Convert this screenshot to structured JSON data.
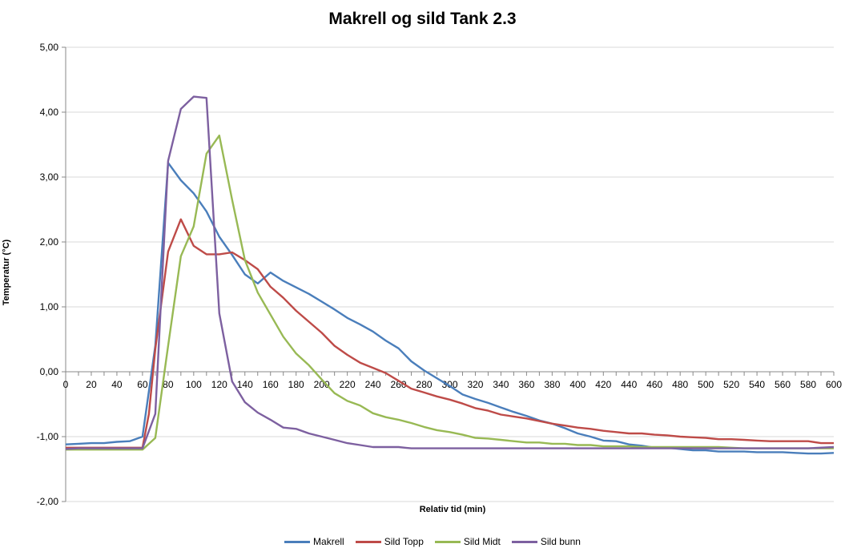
{
  "chart_data": {
    "type": "line",
    "title": "Makrell og sild Tank 2.3",
    "xlabel": "Relativ tid (min)",
    "ylabel": "Temperatur (°C)",
    "xlim": [
      0,
      600
    ],
    "ylim": [
      -2,
      5
    ],
    "x_ticks": [
      "0",
      "20",
      "40",
      "60",
      "80",
      "100",
      "120",
      "140",
      "160",
      "180",
      "200",
      "220",
      "240",
      "260",
      "280",
      "300",
      "320",
      "340",
      "360",
      "380",
      "400",
      "420",
      "440",
      "460",
      "480",
      "500",
      "520",
      "540",
      "560",
      "580",
      "600"
    ],
    "y_ticks": [
      "5,00",
      "4,00",
      "3,00",
      "2,00",
      "1,00",
      "0,00",
      "-1,00",
      "-2,00"
    ],
    "grid": "horizontal",
    "legend_position": "bottom",
    "series": [
      {
        "name": "Makrell",
        "color": "#4a7ebb",
        "points": [
          [
            0,
            -1.12
          ],
          [
            10,
            -1.11
          ],
          [
            20,
            -1.1
          ],
          [
            30,
            -1.1
          ],
          [
            40,
            -1.08
          ],
          [
            50,
            -1.07
          ],
          [
            60,
            -1.0
          ],
          [
            70,
            0.4
          ],
          [
            80,
            3.22
          ],
          [
            90,
            2.95
          ],
          [
            100,
            2.75
          ],
          [
            110,
            2.47
          ],
          [
            120,
            2.08
          ],
          [
            130,
            1.8
          ],
          [
            140,
            1.5
          ],
          [
            150,
            1.36
          ],
          [
            160,
            1.53
          ],
          [
            170,
            1.4
          ],
          [
            180,
            1.3
          ],
          [
            190,
            1.2
          ],
          [
            200,
            1.08
          ],
          [
            210,
            0.96
          ],
          [
            220,
            0.83
          ],
          [
            230,
            0.73
          ],
          [
            240,
            0.62
          ],
          [
            250,
            0.48
          ],
          [
            260,
            0.36
          ],
          [
            270,
            0.16
          ],
          [
            280,
            0.02
          ],
          [
            290,
            -0.1
          ],
          [
            300,
            -0.22
          ],
          [
            310,
            -0.35
          ],
          [
            320,
            -0.42
          ],
          [
            330,
            -0.48
          ],
          [
            340,
            -0.55
          ],
          [
            350,
            -0.62
          ],
          [
            360,
            -0.68
          ],
          [
            370,
            -0.75
          ],
          [
            380,
            -0.8
          ],
          [
            390,
            -0.87
          ],
          [
            400,
            -0.95
          ],
          [
            410,
            -1.0
          ],
          [
            420,
            -1.06
          ],
          [
            430,
            -1.07
          ],
          [
            440,
            -1.12
          ],
          [
            450,
            -1.14
          ],
          [
            460,
            -1.17
          ],
          [
            470,
            -1.17
          ],
          [
            480,
            -1.19
          ],
          [
            490,
            -1.21
          ],
          [
            500,
            -1.21
          ],
          [
            510,
            -1.23
          ],
          [
            520,
            -1.23
          ],
          [
            530,
            -1.23
          ],
          [
            540,
            -1.24
          ],
          [
            550,
            -1.24
          ],
          [
            560,
            -1.24
          ],
          [
            570,
            -1.25
          ],
          [
            580,
            -1.26
          ],
          [
            590,
            -1.26
          ],
          [
            600,
            -1.25
          ]
        ]
      },
      {
        "name": "Sild Topp",
        "color": "#be4b48",
        "points": [
          [
            0,
            -1.17
          ],
          [
            10,
            -1.17
          ],
          [
            20,
            -1.17
          ],
          [
            30,
            -1.17
          ],
          [
            40,
            -1.17
          ],
          [
            50,
            -1.17
          ],
          [
            60,
            -1.17
          ],
          [
            65,
            -0.65
          ],
          [
            70,
            0.35
          ],
          [
            80,
            1.85
          ],
          [
            90,
            2.35
          ],
          [
            100,
            1.94
          ],
          [
            110,
            1.81
          ],
          [
            120,
            1.81
          ],
          [
            130,
            1.84
          ],
          [
            140,
            1.72
          ],
          [
            150,
            1.58
          ],
          [
            160,
            1.31
          ],
          [
            170,
            1.14
          ],
          [
            180,
            0.94
          ],
          [
            190,
            0.77
          ],
          [
            200,
            0.6
          ],
          [
            210,
            0.4
          ],
          [
            220,
            0.26
          ],
          [
            230,
            0.14
          ],
          [
            240,
            0.06
          ],
          [
            250,
            -0.02
          ],
          [
            260,
            -0.14
          ],
          [
            270,
            -0.26
          ],
          [
            280,
            -0.32
          ],
          [
            290,
            -0.38
          ],
          [
            300,
            -0.43
          ],
          [
            310,
            -0.49
          ],
          [
            320,
            -0.56
          ],
          [
            330,
            -0.6
          ],
          [
            340,
            -0.66
          ],
          [
            350,
            -0.69
          ],
          [
            360,
            -0.72
          ],
          [
            370,
            -0.76
          ],
          [
            380,
            -0.8
          ],
          [
            390,
            -0.83
          ],
          [
            400,
            -0.86
          ],
          [
            410,
            -0.88
          ],
          [
            420,
            -0.91
          ],
          [
            430,
            -0.93
          ],
          [
            440,
            -0.95
          ],
          [
            450,
            -0.95
          ],
          [
            460,
            -0.97
          ],
          [
            470,
            -0.98
          ],
          [
            480,
            -1.0
          ],
          [
            490,
            -1.01
          ],
          [
            500,
            -1.02
          ],
          [
            510,
            -1.04
          ],
          [
            520,
            -1.04
          ],
          [
            530,
            -1.05
          ],
          [
            540,
            -1.06
          ],
          [
            550,
            -1.07
          ],
          [
            560,
            -1.07
          ],
          [
            570,
            -1.07
          ],
          [
            580,
            -1.07
          ],
          [
            590,
            -1.1
          ],
          [
            600,
            -1.1
          ]
        ]
      },
      {
        "name": "Sild Midt",
        "color": "#98b954",
        "points": [
          [
            0,
            -1.2
          ],
          [
            10,
            -1.2
          ],
          [
            20,
            -1.2
          ],
          [
            30,
            -1.2
          ],
          [
            40,
            -1.2
          ],
          [
            50,
            -1.2
          ],
          [
            60,
            -1.2
          ],
          [
            70,
            -1.02
          ],
          [
            80,
            0.4
          ],
          [
            90,
            1.78
          ],
          [
            100,
            2.24
          ],
          [
            110,
            3.36
          ],
          [
            120,
            3.64
          ],
          [
            130,
            2.65
          ],
          [
            140,
            1.72
          ],
          [
            150,
            1.22
          ],
          [
            160,
            0.88
          ],
          [
            170,
            0.54
          ],
          [
            180,
            0.28
          ],
          [
            190,
            0.1
          ],
          [
            200,
            -0.12
          ],
          [
            210,
            -0.33
          ],
          [
            220,
            -0.45
          ],
          [
            230,
            -0.52
          ],
          [
            240,
            -0.64
          ],
          [
            250,
            -0.7
          ],
          [
            260,
            -0.74
          ],
          [
            270,
            -0.79
          ],
          [
            280,
            -0.85
          ],
          [
            290,
            -0.9
          ],
          [
            300,
            -0.93
          ],
          [
            310,
            -0.97
          ],
          [
            320,
            -1.02
          ],
          [
            330,
            -1.03
          ],
          [
            340,
            -1.05
          ],
          [
            350,
            -1.07
          ],
          [
            360,
            -1.09
          ],
          [
            370,
            -1.09
          ],
          [
            380,
            -1.11
          ],
          [
            390,
            -1.11
          ],
          [
            400,
            -1.13
          ],
          [
            410,
            -1.13
          ],
          [
            420,
            -1.15
          ],
          [
            430,
            -1.15
          ],
          [
            440,
            -1.15
          ],
          [
            450,
            -1.16
          ],
          [
            460,
            -1.16
          ],
          [
            470,
            -1.16
          ],
          [
            480,
            -1.16
          ],
          [
            490,
            -1.16
          ],
          [
            500,
            -1.16
          ],
          [
            510,
            -1.16
          ],
          [
            520,
            -1.17
          ],
          [
            530,
            -1.18
          ],
          [
            540,
            -1.18
          ],
          [
            550,
            -1.18
          ],
          [
            560,
            -1.18
          ],
          [
            570,
            -1.18
          ],
          [
            580,
            -1.18
          ],
          [
            590,
            -1.18
          ],
          [
            600,
            -1.18
          ]
        ]
      },
      {
        "name": "Sild bunn",
        "color": "#7d60a0",
        "points": [
          [
            0,
            -1.19
          ],
          [
            10,
            -1.18
          ],
          [
            20,
            -1.18
          ],
          [
            30,
            -1.18
          ],
          [
            40,
            -1.18
          ],
          [
            50,
            -1.18
          ],
          [
            60,
            -1.18
          ],
          [
            70,
            -0.65
          ],
          [
            80,
            3.25
          ],
          [
            90,
            4.05
          ],
          [
            100,
            4.24
          ],
          [
            110,
            4.22
          ],
          [
            120,
            0.9
          ],
          [
            130,
            -0.15
          ],
          [
            140,
            -0.47
          ],
          [
            150,
            -0.63
          ],
          [
            160,
            -0.74
          ],
          [
            170,
            -0.86
          ],
          [
            180,
            -0.88
          ],
          [
            190,
            -0.95
          ],
          [
            200,
            -1.0
          ],
          [
            210,
            -1.05
          ],
          [
            220,
            -1.1
          ],
          [
            230,
            -1.13
          ],
          [
            240,
            -1.16
          ],
          [
            250,
            -1.16
          ],
          [
            260,
            -1.16
          ],
          [
            270,
            -1.18
          ],
          [
            280,
            -1.18
          ],
          [
            290,
            -1.18
          ],
          [
            300,
            -1.18
          ],
          [
            320,
            -1.18
          ],
          [
            340,
            -1.18
          ],
          [
            360,
            -1.18
          ],
          [
            380,
            -1.18
          ],
          [
            400,
            -1.18
          ],
          [
            420,
            -1.18
          ],
          [
            440,
            -1.18
          ],
          [
            460,
            -1.18
          ],
          [
            480,
            -1.18
          ],
          [
            500,
            -1.18
          ],
          [
            520,
            -1.18
          ],
          [
            540,
            -1.18
          ],
          [
            560,
            -1.18
          ],
          [
            580,
            -1.18
          ],
          [
            600,
            -1.16
          ]
        ]
      }
    ]
  }
}
